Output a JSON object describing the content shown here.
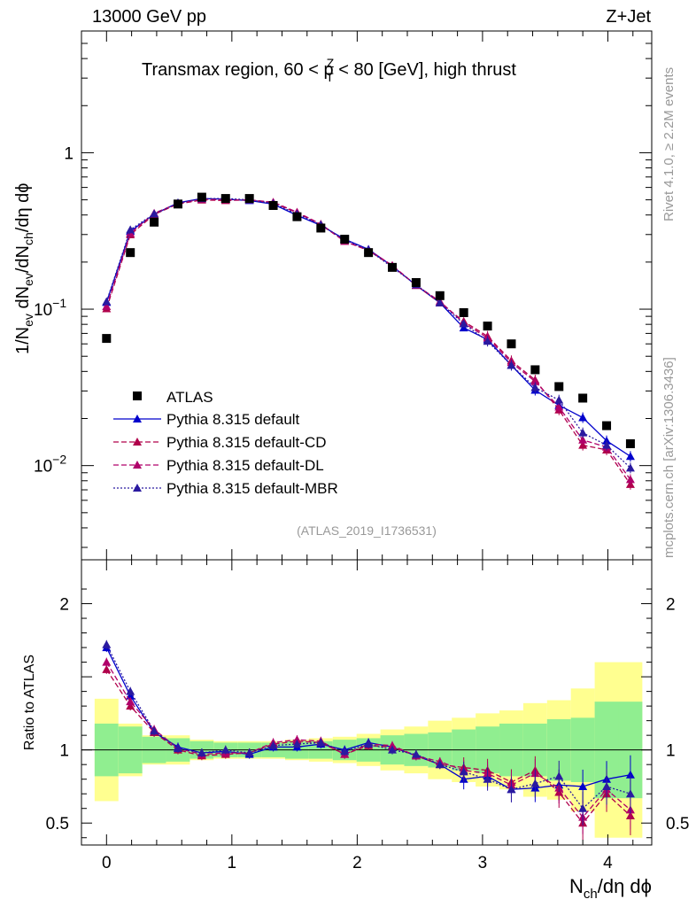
{
  "header": {
    "left": "13000 GeV pp",
    "right": "Z+Jet",
    "subtitle": "Transmax region, 60 < p",
    "subtitle_sup": "Z",
    "subtitle_sub": "T",
    "subtitle_tail": " < 80 [GeV], high thrust"
  },
  "side": {
    "rivet": "Rivet 4.1.0, ≥ 2.2M events",
    "mcplots": "mcplots.cern.ch [arXiv:1306.3436]"
  },
  "analysis_tag": "(ATLAS_2019_I1736531)",
  "colors": {
    "atlas": "#000000",
    "default": "#0000cc",
    "cd": "#b0004a",
    "dl": "#b0006a",
    "mbr": "#2a1aa0",
    "band_inner": "#90ee90",
    "band_outer": "#ffff90",
    "label_gray": "#999999"
  },
  "chart_data": {
    "type": "scatter",
    "title": "Transmax region, 60 < pT(Z) < 80 [GeV], high thrust",
    "xlabel_main": "N",
    "xlabel_sub": "ch",
    "xlabel_tail": "/dη dϕ",
    "ylabel_main": "1/N",
    "ylabel_sub1": "ev",
    "ylabel_mid": " dN",
    "ylabel_sub2": "ev",
    "ylabel_mid2": "/dN",
    "ylabel_sub3": "ch",
    "ylabel_tail": "/dη dϕ",
    "ratio_ylabel": "Ratio to ATLAS",
    "xlim": [
      -0.2,
      4.35
    ],
    "ylim_log": [
      0.0025,
      6.0
    ],
    "ratio_ylim": [
      0.35,
      2.3
    ],
    "x_ticks": [
      "0",
      "1",
      "2",
      "3",
      "4"
    ],
    "y_ticks_main": [
      {
        "base": "10",
        "exp": "−2",
        "value": 0.01
      },
      {
        "base": "10",
        "exp": "−1",
        "value": 0.1
      },
      {
        "base": "1",
        "exp": "",
        "value": 1
      }
    ],
    "ratio_ticks": [
      "0.5",
      "1",
      "2"
    ],
    "x": [
      0.0,
      0.19,
      0.38,
      0.57,
      0.76,
      0.95,
      1.14,
      1.33,
      1.52,
      1.71,
      1.9,
      2.09,
      2.28,
      2.47,
      2.66,
      2.85,
      3.04,
      3.23,
      3.42,
      3.61,
      3.8,
      3.99,
      4.18
    ],
    "atlas": [
      0.065,
      0.23,
      0.36,
      0.47,
      0.52,
      0.51,
      0.51,
      0.46,
      0.39,
      0.33,
      0.28,
      0.23,
      0.185,
      0.148,
      0.122,
      0.095,
      0.078,
      0.06,
      0.041,
      0.032,
      0.027,
      0.018,
      0.0138
    ],
    "band_inner": [
      0.18,
      0.16,
      0.09,
      0.08,
      0.06,
      0.05,
      0.05,
      0.05,
      0.06,
      0.06,
      0.07,
      0.08,
      0.1,
      0.11,
      0.12,
      0.14,
      0.16,
      0.18,
      0.18,
      0.21,
      0.22,
      0.33,
      0.33
    ],
    "band_outer": [
      0.35,
      0.18,
      0.1,
      0.1,
      0.07,
      0.06,
      0.06,
      0.06,
      0.07,
      0.08,
      0.09,
      0.11,
      0.14,
      0.16,
      0.2,
      0.22,
      0.25,
      0.27,
      0.32,
      0.34,
      0.42,
      0.6,
      0.6
    ],
    "series": [
      {
        "name": "Pythia 8.315 default",
        "key": "default",
        "style": "solid",
        "ratio": [
          1.7,
          1.37,
          1.12,
          1.02,
          0.98,
          0.99,
          0.97,
          1.02,
          1.02,
          1.04,
          1.0,
          1.05,
          1.02,
          0.96,
          0.9,
          0.8,
          0.82,
          0.73,
          0.74,
          0.76,
          0.75,
          0.8,
          0.83
        ]
      },
      {
        "name": "Pythia 8.315 default-CD",
        "key": "cd",
        "style": "dash",
        "ratio": [
          1.55,
          1.3,
          1.12,
          1.0,
          0.96,
          0.97,
          0.98,
          1.04,
          1.06,
          1.05,
          0.97,
          1.03,
          1.02,
          0.96,
          0.9,
          0.88,
          0.86,
          0.78,
          0.86,
          0.71,
          0.5,
          0.7,
          0.55
        ]
      },
      {
        "name": "Pythia 8.315 default-DL",
        "key": "dl",
        "style": "dash",
        "ratio": [
          1.6,
          1.33,
          1.14,
          1.01,
          0.97,
          0.98,
          0.98,
          1.05,
          1.07,
          1.06,
          0.97,
          1.04,
          1.03,
          0.96,
          0.92,
          0.86,
          0.84,
          0.76,
          0.84,
          0.74,
          0.54,
          0.73,
          0.59
        ]
      },
      {
        "name": "Pythia 8.315 default-MBR",
        "key": "mbr",
        "style": "dot",
        "ratio": [
          1.72,
          1.4,
          1.13,
          1.01,
          0.98,
          1.0,
          0.98,
          1.03,
          1.04,
          1.05,
          0.99,
          1.04,
          1.0,
          0.97,
          0.9,
          0.85,
          0.8,
          0.73,
          0.77,
          0.82,
          0.6,
          0.75,
          0.7
        ]
      }
    ]
  },
  "legend": {
    "atlas": "ATLAS",
    "items": [
      "Pythia 8.315 default",
      "Pythia 8.315 default-CD",
      "Pythia 8.315 default-DL",
      "Pythia 8.315 default-MBR"
    ]
  }
}
